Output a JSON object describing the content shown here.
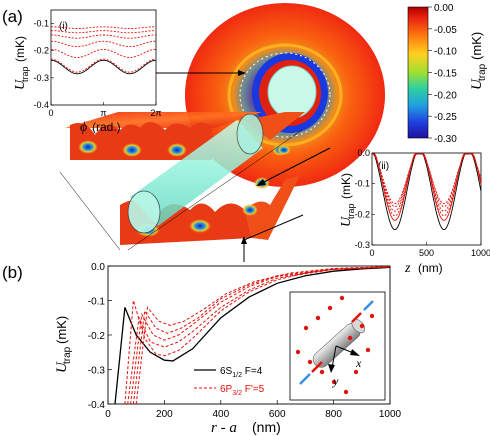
{
  "panels": {
    "a_label": "(a)",
    "b_label": "(b)",
    "inset_i_label": "(i)",
    "inset_ii_label": "(ii)"
  },
  "colorbar": {
    "ticks": [
      "0.00",
      "-0.05",
      "-0.10",
      "-0.15",
      "-0.20",
      "-0.25",
      "-0.30"
    ],
    "label_symbol": "U",
    "label_sub": "trap",
    "label_unit": "(mK)"
  },
  "inset_i": {
    "ylabel_symbol": "U",
    "ylabel_sub": "trap",
    "ylabel_unit": "(mK)",
    "yticks": [
      "-0.1",
      "-0.2",
      "-0.3",
      "-0.4"
    ],
    "xticks": [
      "0",
      "π",
      "2π"
    ],
    "xlabel_symbol": "ϕ",
    "xlabel_unit": "(rad.)"
  },
  "inset_ii": {
    "ylabel_symbol": "U",
    "ylabel_sub": "trap",
    "ylabel_unit": "(mK)",
    "yticks": [
      "0.0",
      "-0.1",
      "-0.2",
      "-0.3"
    ],
    "xticks": [
      "0",
      "500",
      "1000"
    ],
    "xlabel_symbol": "z",
    "xlabel_unit": "(nm)"
  },
  "main_b": {
    "ylabel_symbol": "U",
    "ylabel_sub": "trap",
    "ylabel_unit": "(mK)",
    "yticks": [
      "0.0",
      "-0.1",
      "-0.2",
      "-0.3",
      "-0.4"
    ],
    "xticks": [
      "0",
      "200",
      "400",
      "600",
      "800",
      "1000"
    ],
    "xlabel_main": "r - a",
    "xlabel_unit": "(nm)",
    "legend": [
      {
        "pre": "6S",
        "sub": "1/2",
        "post": "  F=4",
        "color": "#000000",
        "style": "solid"
      },
      {
        "pre": "6P",
        "sub": "3/2",
        "post": "  F'=5",
        "color": "#e3120b",
        "style": "dashed"
      }
    ],
    "axis_x_name": "x",
    "axis_y_name": "y"
  },
  "chart_data": {
    "type": "line",
    "xlabel": "r - a (nm)",
    "ylabel": "Utrap(mK)",
    "xlim": [
      0,
      1000
    ],
    "ylim": [
      -0.4,
      0.0
    ],
    "series": [
      {
        "name": "6S1/2 F=4",
        "x": [
          25,
          60,
          100,
          150,
          200,
          230,
          300,
          400,
          500,
          600,
          700,
          800,
          900,
          1000
        ],
        "y": [
          -0.4,
          -0.12,
          -0.2,
          -0.25,
          -0.273,
          -0.275,
          -0.24,
          -0.15,
          -0.09,
          -0.05,
          -0.028,
          -0.015,
          -0.008,
          -0.004
        ]
      },
      {
        "name": "6P3/2 F'=5",
        "x": [
          60,
          90,
          130,
          170,
          200,
          250,
          300,
          400,
          500,
          600,
          700,
          800,
          1000
        ],
        "y": [
          -0.4,
          -0.1,
          -0.21,
          -0.255,
          -0.26,
          -0.245,
          -0.21,
          -0.13,
          -0.075,
          -0.04,
          -0.02,
          -0.01,
          -0.003
        ]
      },
      {
        "x": [
          70,
          110,
          150,
          200,
          250,
          300,
          400,
          500,
          600,
          800,
          1000
        ],
        "y": [
          -0.4,
          -0.15,
          -0.22,
          -0.235,
          -0.22,
          -0.19,
          -0.12,
          -0.07,
          -0.035,
          -0.01,
          -0.003
        ]
      },
      {
        "x": [
          80,
          120,
          160,
          200,
          250,
          300,
          400,
          500,
          600,
          800,
          1000
        ],
        "y": [
          -0.4,
          -0.14,
          -0.2,
          -0.215,
          -0.2,
          -0.17,
          -0.105,
          -0.06,
          -0.03,
          -0.01,
          -0.003
        ]
      },
      {
        "x": [
          90,
          130,
          170,
          210,
          260,
          320,
          400,
          500,
          600,
          800,
          1000
        ],
        "y": [
          -0.4,
          -0.13,
          -0.18,
          -0.195,
          -0.18,
          -0.15,
          -0.095,
          -0.055,
          -0.028,
          -0.008,
          -0.002
        ]
      },
      {
        "x": [
          100,
          140,
          180,
          220,
          270,
          330,
          420,
          520,
          650,
          800,
          1000
        ],
        "y": [
          -0.4,
          -0.12,
          -0.16,
          -0.172,
          -0.16,
          -0.13,
          -0.08,
          -0.045,
          -0.02,
          -0.007,
          -0.002
        ]
      }
    ]
  }
}
